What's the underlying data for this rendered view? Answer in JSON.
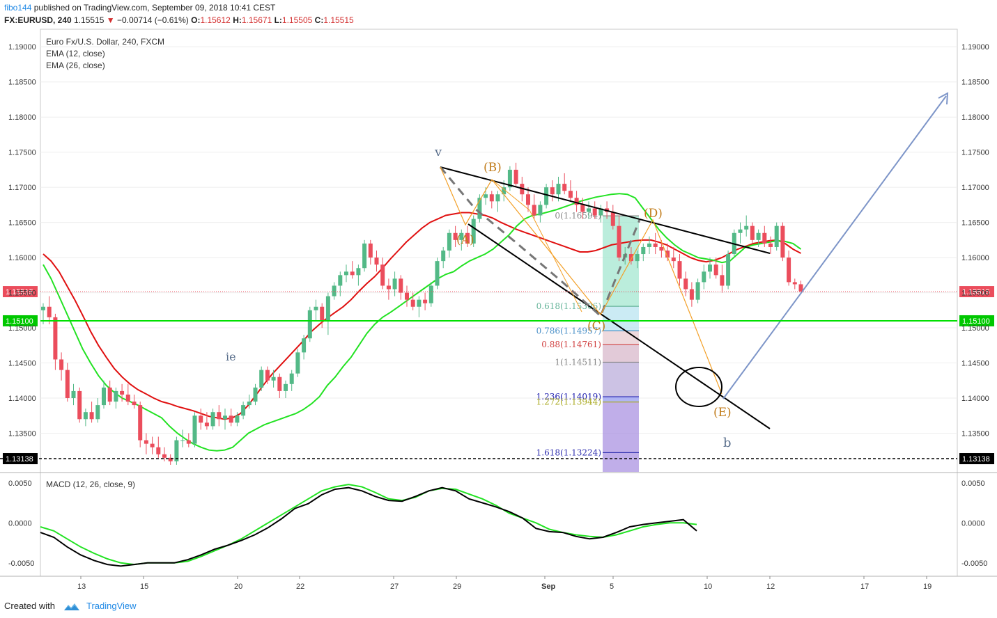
{
  "header": {
    "author": "fibo144",
    "published_text": "published on TradingView.com, September 09, 2018 10:41 CEST",
    "symbol": "FX:EURUSD, 240",
    "last": "1.15515",
    "arrow": "▼",
    "change": "−0.00714 (−0.61%)",
    "o_label": "O:",
    "o_val": "1.15612",
    "h_label": "H:",
    "h_val": "1.15671",
    "l_label": "L:",
    "l_val": "1.15505",
    "c_label": "C:",
    "c_val": "1.15515"
  },
  "legend": {
    "title": "Euro Fx/U.S. Dollar, 240, FXCM",
    "ema1": "EMA (12, close)",
    "ema2": "EMA (26, close)",
    "macd": "MACD (12, 26, close, 9)"
  },
  "footer": {
    "created_with": "Created with",
    "brand": "TradingView"
  },
  "colors": {
    "up": "#53b987",
    "down": "#eb4d5c",
    "ema12": "#22e222",
    "ema26": "#e01010",
    "macd": "#000000",
    "signal": "#22e222",
    "hline_green": "#00e000",
    "last_price": "#eb4d5c",
    "wave": "#c07a17",
    "projection": "#7d95c8"
  },
  "chart_data": [
    {
      "type": "candlestick",
      "title": "Euro Fx/U.S. Dollar, 240, FXCM",
      "ylim": [
        1.1295,
        1.1925
      ],
      "y_ticks": [
        "1.19000",
        "1.18500",
        "1.18000",
        "1.17500",
        "1.17000",
        "1.16500",
        "1.16000",
        "1.15500",
        "1.15000",
        "1.14500",
        "1.14000",
        "1.13500"
      ],
      "x_ticks": [
        "13",
        "15",
        "20",
        "22",
        "27",
        "29",
        "Sep",
        "5",
        "10",
        "12",
        "17",
        "19"
      ],
      "current_price": "1.15515",
      "level_label_green": "1.15100",
      "level_label_black": "1.13138",
      "candles": [
        [
          1.1525,
          1.1535,
          1.1505,
          1.153
        ],
        [
          1.153,
          1.1545,
          1.1505,
          1.1515
        ],
        [
          1.1515,
          1.152,
          1.144,
          1.1455
        ],
        [
          1.1455,
          1.1465,
          1.1425,
          1.144
        ],
        [
          1.144,
          1.145,
          1.1395,
          1.14
        ],
        [
          1.14,
          1.142,
          1.139,
          1.141
        ],
        [
          1.141,
          1.1415,
          1.1365,
          1.137
        ],
        [
          1.137,
          1.1385,
          1.136,
          1.138
        ],
        [
          1.138,
          1.1395,
          1.1365,
          1.137
        ],
        [
          1.137,
          1.14,
          1.1365,
          1.139
        ],
        [
          1.139,
          1.1425,
          1.1385,
          1.1415
        ],
        [
          1.1415,
          1.1425,
          1.139,
          1.1395
        ],
        [
          1.1395,
          1.1415,
          1.1385,
          1.141
        ],
        [
          1.141,
          1.142,
          1.1395,
          1.1405
        ],
        [
          1.1405,
          1.142,
          1.139,
          1.1395
        ],
        [
          1.1395,
          1.1405,
          1.1385,
          1.139
        ],
        [
          1.139,
          1.1395,
          1.133,
          1.134
        ],
        [
          1.134,
          1.135,
          1.132,
          1.1335
        ],
        [
          1.1335,
          1.1345,
          1.132,
          1.133
        ],
        [
          1.133,
          1.1345,
          1.1315,
          1.132
        ],
        [
          1.132,
          1.133,
          1.131,
          1.1315
        ],
        [
          1.1315,
          1.132,
          1.1305,
          1.131
        ],
        [
          1.131,
          1.1345,
          1.1305,
          1.134
        ],
        [
          1.134,
          1.1355,
          1.133,
          1.134
        ],
        [
          1.134,
          1.135,
          1.133,
          1.1335
        ],
        [
          1.1335,
          1.138,
          1.133,
          1.1375
        ],
        [
          1.1375,
          1.1385,
          1.1355,
          1.1365
        ],
        [
          1.1365,
          1.138,
          1.1355,
          1.136
        ],
        [
          1.136,
          1.1385,
          1.1355,
          1.138
        ],
        [
          1.138,
          1.139,
          1.136,
          1.137
        ],
        [
          1.137,
          1.1385,
          1.1355,
          1.1375
        ],
        [
          1.1375,
          1.1385,
          1.136,
          1.1365
        ],
        [
          1.1365,
          1.138,
          1.136,
          1.1375
        ],
        [
          1.1375,
          1.1395,
          1.137,
          1.139
        ],
        [
          1.139,
          1.1405,
          1.1385,
          1.1395
        ],
        [
          1.1395,
          1.142,
          1.139,
          1.1415
        ],
        [
          1.1415,
          1.1445,
          1.141,
          1.144
        ],
        [
          1.144,
          1.1445,
          1.142,
          1.1425
        ],
        [
          1.1425,
          1.144,
          1.1415,
          1.143
        ],
        [
          1.143,
          1.1435,
          1.14,
          1.141
        ],
        [
          1.141,
          1.1425,
          1.14,
          1.142
        ],
        [
          1.142,
          1.144,
          1.141,
          1.1435
        ],
        [
          1.1435,
          1.147,
          1.143,
          1.1465
        ],
        [
          1.1465,
          1.149,
          1.1455,
          1.1485
        ],
        [
          1.1485,
          1.153,
          1.148,
          1.1525
        ],
        [
          1.1525,
          1.154,
          1.151,
          1.153
        ],
        [
          1.153,
          1.1535,
          1.15,
          1.151
        ],
        [
          1.151,
          1.155,
          1.149,
          1.1545
        ],
        [
          1.1545,
          1.1565,
          1.154,
          1.156
        ],
        [
          1.156,
          1.158,
          1.1545,
          1.1575
        ],
        [
          1.1575,
          1.159,
          1.1565,
          1.158
        ],
        [
          1.158,
          1.1595,
          1.157,
          1.1575
        ],
        [
          1.1575,
          1.159,
          1.156,
          1.1585
        ],
        [
          1.1585,
          1.1625,
          1.158,
          1.162
        ],
        [
          1.162,
          1.1625,
          1.159,
          1.16
        ],
        [
          1.16,
          1.161,
          1.158,
          1.159
        ],
        [
          1.159,
          1.16,
          1.1555,
          1.156
        ],
        [
          1.156,
          1.157,
          1.154,
          1.1555
        ],
        [
          1.1555,
          1.158,
          1.1545,
          1.157
        ],
        [
          1.157,
          1.1575,
          1.154,
          1.155
        ],
        [
          1.155,
          1.156,
          1.153,
          1.154
        ],
        [
          1.154,
          1.155,
          1.1525,
          1.153
        ],
        [
          1.153,
          1.1545,
          1.1515,
          1.154
        ],
        [
          1.154,
          1.155,
          1.1525,
          1.1535
        ],
        [
          1.1535,
          1.1565,
          1.153,
          1.156
        ],
        [
          1.156,
          1.16,
          1.1555,
          1.1595
        ],
        [
          1.1595,
          1.1615,
          1.1585,
          1.161
        ],
        [
          1.161,
          1.164,
          1.16,
          1.1635
        ],
        [
          1.1635,
          1.1645,
          1.1615,
          1.1625
        ],
        [
          1.1625,
          1.164,
          1.161,
          1.1635
        ],
        [
          1.1635,
          1.1645,
          1.1615,
          1.162
        ],
        [
          1.162,
          1.166,
          1.1615,
          1.1655
        ],
        [
          1.1655,
          1.169,
          1.165,
          1.1685
        ],
        [
          1.1685,
          1.17,
          1.1675,
          1.169
        ],
        [
          1.169,
          1.1695,
          1.167,
          1.168
        ],
        [
          1.168,
          1.1695,
          1.1665,
          1.169
        ],
        [
          1.169,
          1.171,
          1.168,
          1.17
        ],
        [
          1.17,
          1.173,
          1.1695,
          1.1725
        ],
        [
          1.1725,
          1.1735,
          1.17,
          1.1705
        ],
        [
          1.1705,
          1.1715,
          1.168,
          1.169
        ],
        [
          1.169,
          1.17,
          1.1665,
          1.1675
        ],
        [
          1.1675,
          1.169,
          1.1655,
          1.166
        ],
        [
          1.166,
          1.168,
          1.165,
          1.1675
        ],
        [
          1.1675,
          1.1705,
          1.167,
          1.17
        ],
        [
          1.17,
          1.171,
          1.168,
          1.169
        ],
        [
          1.169,
          1.1715,
          1.168,
          1.1705
        ],
        [
          1.1705,
          1.172,
          1.169,
          1.1695
        ],
        [
          1.1695,
          1.171,
          1.168,
          1.1685
        ],
        [
          1.1685,
          1.1695,
          1.1665,
          1.1675
        ],
        [
          1.1675,
          1.1685,
          1.1655,
          1.1665
        ],
        [
          1.1665,
          1.168,
          1.1655,
          1.167
        ],
        [
          1.167,
          1.168,
          1.1655,
          1.166
        ],
        [
          1.166,
          1.1675,
          1.165,
          1.167
        ],
        [
          1.167,
          1.168,
          1.1655,
          1.1665
        ],
        [
          1.1665,
          1.1675,
          1.164,
          1.1645
        ],
        [
          1.1645,
          1.166,
          1.1595,
          1.16
        ],
        [
          1.16,
          1.1615,
          1.159,
          1.1605
        ],
        [
          1.1605,
          1.1615,
          1.159,
          1.1595
        ],
        [
          1.1595,
          1.161,
          1.1585,
          1.1605
        ],
        [
          1.1605,
          1.162,
          1.1595,
          1.1615
        ],
        [
          1.1615,
          1.163,
          1.1605,
          1.162
        ],
        [
          1.162,
          1.1635,
          1.1605,
          1.1615
        ],
        [
          1.1615,
          1.1625,
          1.16,
          1.161
        ],
        [
          1.161,
          1.162,
          1.1595,
          1.16
        ],
        [
          1.16,
          1.1615,
          1.1585,
          1.1595
        ],
        [
          1.1595,
          1.1605,
          1.156,
          1.157
        ],
        [
          1.157,
          1.158,
          1.1545,
          1.1555
        ],
        [
          1.1555,
          1.1565,
          1.153,
          1.154
        ],
        [
          1.154,
          1.157,
          1.1535,
          1.1565
        ],
        [
          1.1565,
          1.159,
          1.1555,
          1.158
        ],
        [
          1.158,
          1.16,
          1.157,
          1.159
        ],
        [
          1.159,
          1.16,
          1.157,
          1.1575
        ],
        [
          1.1575,
          1.159,
          1.155,
          1.156
        ],
        [
          1.156,
          1.161,
          1.1555,
          1.1605
        ],
        [
          1.1605,
          1.164,
          1.16,
          1.1635
        ],
        [
          1.1635,
          1.165,
          1.162,
          1.164
        ],
        [
          1.164,
          1.166,
          1.163,
          1.1645
        ],
        [
          1.1645,
          1.165,
          1.162,
          1.1625
        ],
        [
          1.1625,
          1.164,
          1.1615,
          1.1635
        ],
        [
          1.1635,
          1.1645,
          1.1615,
          1.162
        ],
        [
          1.162,
          1.163,
          1.1605,
          1.1615
        ],
        [
          1.1615,
          1.165,
          1.161,
          1.1645
        ],
        [
          1.1645,
          1.165,
          1.1595,
          1.16
        ],
        [
          1.16,
          1.161,
          1.156,
          1.1565
        ],
        [
          1.1565,
          1.157,
          1.1555,
          1.1562
        ],
        [
          1.1562,
          1.1567,
          1.155,
          1.1552
        ]
      ],
      "ema12": [
        1.159,
        1.157,
        1.1545,
        1.152,
        1.1495,
        1.147,
        1.145,
        1.1432,
        1.1418,
        1.1408,
        1.14,
        1.1395,
        1.139,
        1.1384,
        1.1378,
        1.1372,
        1.136,
        1.135,
        1.1342,
        1.1335,
        1.133,
        1.1326,
        1.1325,
        1.1326,
        1.133,
        1.134,
        1.135,
        1.1356,
        1.1362,
        1.1366,
        1.137,
        1.1374,
        1.1378,
        1.1384,
        1.1392,
        1.1402,
        1.1418,
        1.143,
        1.1445,
        1.1458,
        1.1475,
        1.1492,
        1.1505,
        1.1515,
        1.1522,
        1.153,
        1.1538,
        1.1546,
        1.1554,
        1.1562,
        1.157,
        1.1576,
        1.158,
        1.1588,
        1.1595,
        1.16,
        1.1605,
        1.1612,
        1.1622,
        1.1632,
        1.1645,
        1.1655,
        1.166,
        1.1662,
        1.1665,
        1.1668,
        1.1672,
        1.1676,
        1.168,
        1.1683,
        1.1686,
        1.1688,
        1.169,
        1.1691,
        1.169,
        1.1685,
        1.167,
        1.1655,
        1.164,
        1.1628,
        1.1618,
        1.161,
        1.1605,
        1.16,
        1.1598,
        1.1596,
        1.1593,
        1.1595,
        1.1605,
        1.1615,
        1.1618,
        1.162,
        1.1622,
        1.1624,
        1.1623,
        1.162,
        1.1612
      ],
      "ema26": [
        1.1605,
        1.1595,
        1.158,
        1.156,
        1.154,
        1.1518,
        1.1495,
        1.1475,
        1.1458,
        1.1442,
        1.143,
        1.142,
        1.1412,
        1.1406,
        1.14,
        1.1395,
        1.1392,
        1.1388,
        1.1385,
        1.1382,
        1.1378,
        1.1374,
        1.1372,
        1.137,
        1.1372,
        1.1378,
        1.139,
        1.1405,
        1.142,
        1.1434,
        1.1446,
        1.1458,
        1.147,
        1.1482,
        1.1495,
        1.1505,
        1.1514,
        1.1522,
        1.153,
        1.154,
        1.1552,
        1.1563,
        1.1573,
        1.1585,
        1.1598,
        1.161,
        1.1622,
        1.1632,
        1.1642,
        1.165,
        1.1655,
        1.166,
        1.1662,
        1.1664,
        1.1664,
        1.1662,
        1.166,
        1.1656,
        1.165,
        1.1645,
        1.164,
        1.1636,
        1.1632,
        1.1628,
        1.1624,
        1.162,
        1.1616,
        1.1612,
        1.1608,
        1.1608,
        1.161,
        1.1614,
        1.1618,
        1.162,
        1.1622,
        1.1624,
        1.1625,
        1.1625,
        1.1622,
        1.1618,
        1.1612,
        1.1606,
        1.16,
        1.1596,
        1.1594,
        1.1596,
        1.16,
        1.1606,
        1.1612,
        1.1616,
        1.162,
        1.1622,
        1.1624,
        1.1625,
        1.162,
        1.1612,
        1.1606
      ],
      "horizontal_levels": [
        1.151,
        1.13138,
        1.15515
      ],
      "fibonacci": {
        "levels": [
          {
            "ratio": "0",
            "price": "1.16594",
            "label": "0(1.16594)"
          },
          {
            "ratio": "0.618",
            "price": "1.15306",
            "label": "0.618(1.15306)"
          },
          {
            "ratio": "0.786",
            "price": "1.14957",
            "label": "0.786(1.14957)"
          },
          {
            "ratio": "0.88",
            "price": "1.14761",
            "label": "0.88(1.14761)"
          },
          {
            "ratio": "1",
            "price": "1.14511",
            "label": "1(1.14511)"
          },
          {
            "ratio": "1.236",
            "price": "1.14019",
            "label": "1.236(1.14019)"
          },
          {
            "ratio": "1.272",
            "price": "1.13944",
            "label": "1.272(1.13944)"
          },
          {
            "ratio": "1.618",
            "price": "1.13224",
            "label": "1.618(1.13224)"
          }
        ]
      },
      "annotations": [
        "v",
        "(A)",
        "(B)",
        "(C)",
        "(D)",
        "(E)",
        "b",
        "ie"
      ]
    },
    {
      "type": "line",
      "title": "MACD (12, 26, close, 9)",
      "ylim": [
        -0.0065,
        0.0062
      ],
      "y_ticks": [
        "0.0050",
        "0.0000",
        "-0.0050"
      ],
      "series": [
        {
          "name": "MACD",
          "values": [
            -0.0012,
            -0.0018,
            -0.003,
            -0.004,
            -0.0047,
            -0.0052,
            -0.0054,
            -0.0052,
            -0.005,
            -0.005,
            -0.005,
            -0.0046,
            -0.004,
            -0.0033,
            -0.0028,
            -0.0022,
            -0.0015,
            -0.0006,
            0.0005,
            0.0018,
            0.0024,
            0.0035,
            0.0042,
            0.0044,
            0.004,
            0.0033,
            0.0028,
            0.0027,
            0.0033,
            0.004,
            0.0044,
            0.004,
            0.003,
            0.0025,
            0.002,
            0.0014,
            0.0006,
            -0.0007,
            -0.0011,
            -0.0012,
            -0.0017,
            -0.002,
            -0.0018,
            -0.0012,
            -0.0005,
            -0.0002,
            0.0,
            0.0002,
            0.0004,
            -0.001
          ]
        },
        {
          "name": "Signal",
          "values": [
            -0.0005,
            -0.001,
            -0.002,
            -0.003,
            -0.0038,
            -0.0045,
            -0.005,
            -0.0052,
            -0.005,
            -0.005,
            -0.005,
            -0.0048,
            -0.0042,
            -0.0035,
            -0.0028,
            -0.002,
            -0.001,
            0.0,
            0.001,
            0.002,
            0.003,
            0.004,
            0.0045,
            0.0048,
            0.0045,
            0.0038,
            0.003,
            0.0028,
            0.0032,
            0.004,
            0.0043,
            0.0042,
            0.0036,
            0.003,
            0.0022,
            0.0012,
            0.0006,
            0.0,
            -0.0008,
            -0.0012,
            -0.0015,
            -0.0017,
            -0.0018,
            -0.0015,
            -0.001,
            -0.0005,
            -0.0002,
            0.0,
            0.0,
            -0.0002
          ]
        }
      ]
    }
  ]
}
